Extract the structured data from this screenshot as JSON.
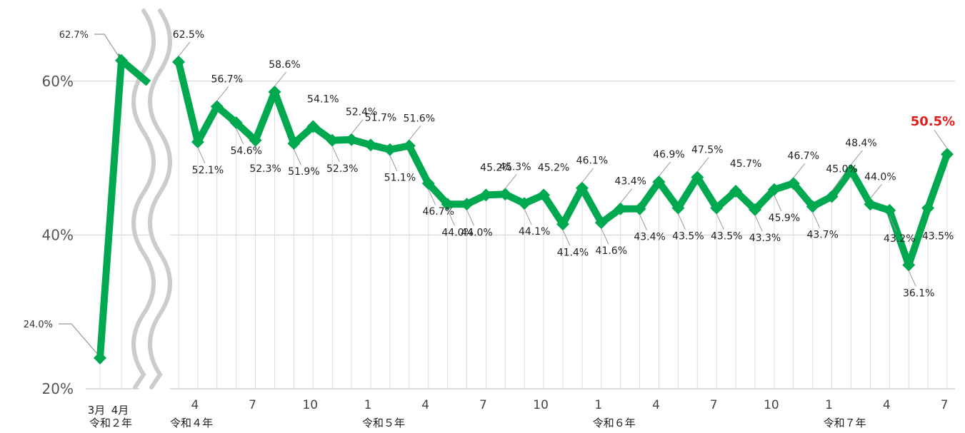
{
  "chart_data": {
    "type": "line",
    "ylim": [
      20,
      65
    ],
    "yticks": [
      20,
      40,
      60
    ],
    "ytick_labels": [
      "20%",
      "40%",
      "60%"
    ],
    "series_color": "#00a84f",
    "gridline_color": "#d0d0d0",
    "break_color": "#cccccc",
    "highlight_color": "#e01e1e",
    "early_points": [
      {
        "label": "3月",
        "value": 24.0,
        "value_label": "24.0%"
      },
      {
        "label": "4月",
        "value": 62.7,
        "value_label": "62.7%"
      }
    ],
    "early_era_label": "令和２年",
    "values": [
      62.5,
      52.1,
      56.7,
      54.6,
      52.3,
      58.6,
      51.9,
      54.1,
      52.3,
      52.4,
      51.7,
      51.1,
      51.6,
      46.7,
      44.0,
      44.0,
      45.2,
      45.3,
      44.1,
      45.2,
      41.4,
      46.1,
      41.6,
      43.4,
      43.4,
      46.9,
      43.5,
      47.5,
      43.5,
      45.7,
      43.3,
      45.9,
      46.7,
      43.7,
      45.0,
      48.4,
      44.0,
      43.2,
      36.1,
      43.5,
      50.5
    ],
    "value_labels": [
      "62.5%",
      "52.1%",
      "56.7%",
      "54.6%",
      "52.3%",
      "58.6%",
      "51.9%",
      "54.1%",
      "52.3%",
      "52.4%",
      "51.7%",
      "51.1%",
      "51.6%",
      "46.7%",
      "44.0%",
      "44.0%",
      "45.2%",
      "45.3%",
      "44.1%",
      "45.2%",
      "41.4%",
      "46.1%",
      "41.6%",
      "43.4%",
      "43.4%",
      "46.9%",
      "43.5%",
      "47.5%",
      "43.5%",
      "45.7%",
      "43.3%",
      "45.9%",
      "46.7%",
      "43.7%",
      "45.0%",
      "48.4%",
      "44.0%",
      "43.2%",
      "36.1%",
      "43.5%",
      "50.5%"
    ],
    "month_ticks": [
      {
        "index": 1,
        "label": "4"
      },
      {
        "index": 4,
        "label": "7"
      },
      {
        "index": 7,
        "label": "10"
      },
      {
        "index": 10,
        "label": "1"
      },
      {
        "index": 13,
        "label": "4"
      },
      {
        "index": 16,
        "label": "7"
      },
      {
        "index": 19,
        "label": "10"
      },
      {
        "index": 22,
        "label": "1"
      },
      {
        "index": 25,
        "label": "4"
      },
      {
        "index": 28,
        "label": "7"
      },
      {
        "index": 31,
        "label": "10"
      },
      {
        "index": 34,
        "label": "1"
      },
      {
        "index": 37,
        "label": "4"
      },
      {
        "index": 40,
        "label": "7"
      }
    ],
    "era_labels": [
      {
        "index": 0,
        "label": "令和４年"
      },
      {
        "index": 10,
        "label": "令和５年"
      },
      {
        "index": 22,
        "label": "令和６年"
      },
      {
        "index": 34,
        "label": "令和７年"
      }
    ]
  }
}
